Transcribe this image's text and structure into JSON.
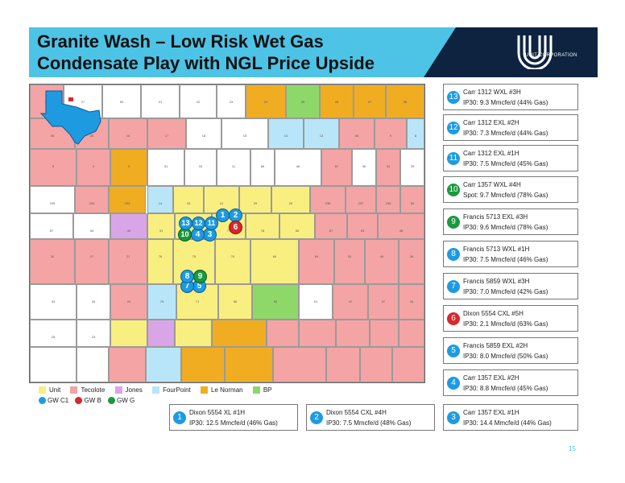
{
  "header": {
    "title": "Granite Wash – Low Risk Wet Gas\nCondensate Play with NGL Price Upside",
    "logo_text": "UNIT CORPORATION"
  },
  "colors": {
    "Unit": "#f8ef80",
    "Tecolote": "#f4a4a4",
    "Jones": "#d8a6e6",
    "FourPoint": "#b8e6f8",
    "Le Norman": "#f0ad22",
    "BP": "#8ed86a",
    "header": "#4dc3e6",
    "header_dark": "#0d2340",
    "texas": "#1e9be0"
  },
  "legend": {
    "operators": [
      "Unit",
      "Tecolote",
      "Jones",
      "FourPoint",
      "Le Norman",
      "BP"
    ],
    "well_types": [
      {
        "label": "GW C1",
        "color": "#1e9be0"
      },
      {
        "label": "GW B",
        "color": "#d8282c"
      },
      {
        "label": "GW G",
        "color": "#1a9a3e"
      }
    ]
  },
  "map": {
    "section_numbers": [
      {
        "text": "36"
      },
      {
        "text": "27"
      },
      {
        "text": "50"
      },
      {
        "text": "21"
      },
      {
        "text": "22"
      },
      {
        "text": "23"
      },
      {
        "text": "24"
      },
      {
        "text": "25"
      },
      {
        "text": "26"
      },
      {
        "text": "27"
      },
      {
        "text": "28"
      },
      {
        "text": "49"
      },
      {
        "text": "20"
      },
      {
        "text": "16"
      },
      {
        "text": "17"
      },
      {
        "text": "18"
      },
      {
        "text": "15"
      },
      {
        "text": "14"
      },
      {
        "text": "13"
      },
      {
        "text": "46"
      },
      {
        "text": "9"
      },
      {
        "text": "8"
      },
      {
        "text": "5"
      },
      {
        "text": "4"
      },
      {
        "text": "3"
      },
      {
        "text": "31"
      },
      {
        "text": "33"
      },
      {
        "text": "11"
      },
      {
        "text": "66"
      },
      {
        "text": "46"
      },
      {
        "text": "67"
      },
      {
        "text": "36"
      },
      {
        "text": "34"
      },
      {
        "text": "30"
      },
      {
        "text": "235"
      },
      {
        "text": "234"
      },
      {
        "text": "233"
      },
      {
        "text": "14"
      },
      {
        "text": "43"
      },
      {
        "text": "41"
      },
      {
        "text": "29"
      },
      {
        "text": "20"
      },
      {
        "text": "236"
      },
      {
        "text": "237"
      },
      {
        "text": "238"
      },
      {
        "text": "56"
      },
      {
        "text": "57"
      },
      {
        "text": "54"
      },
      {
        "text": "40"
      },
      {
        "text": "31"
      },
      {
        "text": "22"
      },
      {
        "text": "77"
      },
      {
        "text": "78"
      },
      {
        "text": "56"
      },
      {
        "text": "57"
      },
      {
        "text": "53"
      },
      {
        "text": "48"
      },
      {
        "text": "32"
      },
      {
        "text": "27"
      },
      {
        "text": "21"
      },
      {
        "text": "76"
      },
      {
        "text": "75"
      },
      {
        "text": "70"
      },
      {
        "text": "60"
      },
      {
        "text": "59"
      },
      {
        "text": "52"
      },
      {
        "text": "49"
      },
      {
        "text": "38"
      },
      {
        "text": "33"
      },
      {
        "text": "26"
      },
      {
        "text": "24"
      },
      {
        "text": "79"
      },
      {
        "text": "71"
      },
      {
        "text": "66"
      },
      {
        "text": "50"
      },
      {
        "text": "51"
      },
      {
        "text": "47"
      },
      {
        "text": "37"
      },
      {
        "text": "34"
      },
      {
        "text": "25"
      },
      {
        "text": "23"
      }
    ]
  },
  "wells": [
    {
      "num": "1",
      "type": "gwc1"
    },
    {
      "num": "2",
      "type": "gwc1"
    },
    {
      "num": "3",
      "type": "gwc1"
    },
    {
      "num": "4",
      "type": "gwc1"
    },
    {
      "num": "5",
      "type": "gwc1"
    },
    {
      "num": "6",
      "type": "gwb"
    },
    {
      "num": "7",
      "type": "gwc1"
    },
    {
      "num": "8",
      "type": "gwc1"
    },
    {
      "num": "9",
      "type": "gwg"
    },
    {
      "num": "10",
      "type": "gwg"
    },
    {
      "num": "11",
      "type": "gwc1"
    },
    {
      "num": "12",
      "type": "gwc1"
    },
    {
      "num": "13",
      "type": "gwc1"
    }
  ],
  "info_boxes": [
    {
      "num": "13",
      "type": "gwc1",
      "name": "Carr 1312 WXL #3H",
      "detail": "IP30: 9.3 Mmcfe/d (44% Gas)"
    },
    {
      "num": "12",
      "type": "gwc1",
      "name": "Carr 1312 EXL #2H",
      "detail": "IP30: 7.3 Mmcfe/d (44% Gas)"
    },
    {
      "num": "11",
      "type": "gwc1",
      "name": "Carr 1312 EXL #1H",
      "detail": "IP30: 7.5 Mmcfe/d (45% Gas)"
    },
    {
      "num": "10",
      "type": "gwg",
      "name": "Carr 1357 WXL #4H",
      "detail": "Spot: 9.7 Mmcfe/d (78% Gas)"
    },
    {
      "num": "9",
      "type": "gwg",
      "name": "Francis 5713 EXL #3H",
      "detail": "IP30: 9.6 Mmcfe/d (78% Gas)"
    },
    {
      "num": "8",
      "type": "gwc1",
      "name": "Francis 5713 WXL #1H",
      "detail": "IP30: 7.5 Mmcfe/d (46% Gas)"
    },
    {
      "num": "7",
      "type": "gwc1",
      "name": "Francis 5859 WXL #3H",
      "detail": "IP30: 7.0 Mmcfe/d (42% Gas)"
    },
    {
      "num": "6",
      "type": "gwb",
      "name": "Dixon 5554 CXL #5H",
      "detail": "IP30: 2.1 Mmcfe/d (63% Gas)"
    },
    {
      "num": "5",
      "type": "gwc1",
      "name": "Francis 5859 EXL #2H",
      "detail": "IP30: 8.0 Mmcfe/d (50% Gas)"
    },
    {
      "num": "4",
      "type": "gwc1",
      "name": "Carr 1357 EXL #2H",
      "detail": "IP30: 8.8 Mmcfe/d (45% Gas)"
    },
    {
      "num": "3",
      "type": "gwc1",
      "name": "Carr 1357 EXL #1H",
      "detail": "IP30: 14.4 Mmcfe/d (44% Gas)"
    },
    {
      "num": "1",
      "type": "gwc1",
      "name": "Dixon 5554 XL #1H",
      "detail": "IP30: 12.5 Mmcfe/d (46% Gas)"
    },
    {
      "num": "2",
      "type": "gwc1",
      "name": "Dixon 5554 CXL #4H",
      "detail": "IP30: 7.5 Mmcfe/d (48% Gas)"
    }
  ],
  "page_number": "15"
}
